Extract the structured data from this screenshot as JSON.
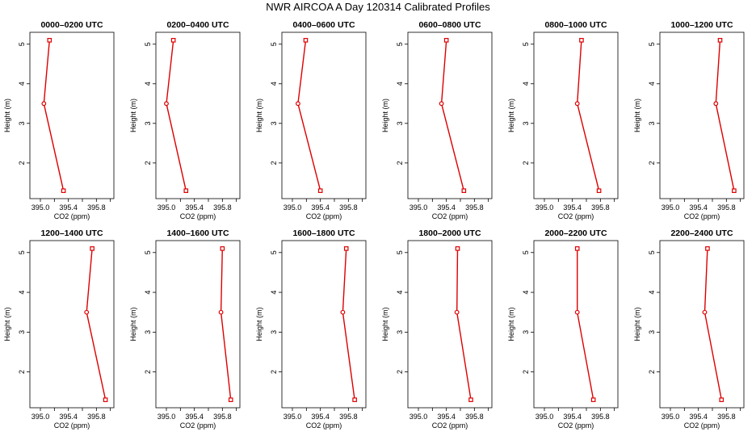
{
  "title": "NWR AIRCOA A  Day 120314  Calibrated Profiles",
  "chart_data": {
    "type": "line",
    "xlabel": "CO2 (ppm)",
    "ylabel": "Height (m)",
    "xlim": [
      394.85,
      396.05
    ],
    "ylim": [
      1.1,
      5.3
    ],
    "x_ticks": [
      "395.0",
      "395.4",
      "395.8"
    ],
    "y_ticks": [
      "2",
      "3",
      "4",
      "5"
    ],
    "series_color": "#dd0000",
    "heights": [
      5.1,
      3.5,
      1.3
    ],
    "panels": [
      {
        "title": "0000–0200 UTC",
        "co2": [
          395.13,
          395.05,
          395.33
        ]
      },
      {
        "title": "0200–0400 UTC",
        "co2": [
          395.1,
          395.0,
          395.28
        ]
      },
      {
        "title": "0400–0600 UTC",
        "co2": [
          395.19,
          395.08,
          395.4
        ]
      },
      {
        "title": "0600–0800 UTC",
        "co2": [
          395.4,
          395.33,
          395.65
        ]
      },
      {
        "title": "0800–1000 UTC",
        "co2": [
          395.53,
          395.47,
          395.78
        ]
      },
      {
        "title": "1000–1200 UTC",
        "co2": [
          395.71,
          395.65,
          395.91
        ]
      },
      {
        "title": "1200–1400 UTC",
        "co2": [
          395.74,
          395.66,
          395.93
        ]
      },
      {
        "title": "1400–1600 UTC",
        "co2": [
          395.8,
          395.78,
          395.92
        ]
      },
      {
        "title": "1600–1800 UTC",
        "co2": [
          395.77,
          395.72,
          395.89
        ]
      },
      {
        "title": "1800–2000 UTC",
        "co2": [
          395.56,
          395.55,
          395.75
        ]
      },
      {
        "title": "2000–2200 UTC",
        "co2": [
          395.47,
          395.47,
          395.7
        ]
      },
      {
        "title": "2200–2400 UTC",
        "co2": [
          395.53,
          395.49,
          395.73
        ]
      }
    ]
  }
}
